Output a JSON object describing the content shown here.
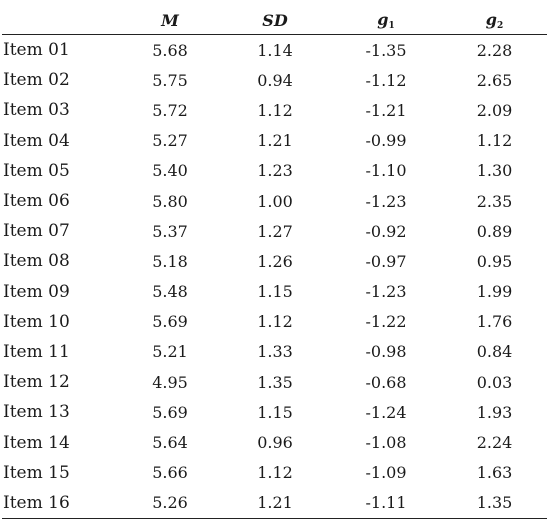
{
  "table": {
    "headers": [
      {
        "base": "",
        "sub": ""
      },
      {
        "base": "M",
        "sub": ""
      },
      {
        "base": "SD",
        "sub": ""
      },
      {
        "base": "g",
        "sub": "1"
      },
      {
        "base": "g",
        "sub": "2"
      }
    ],
    "rows": [
      {
        "label": "Item 01",
        "m": "5.68",
        "sd": "1.14",
        "g1": "-1.35",
        "g2": "2.28"
      },
      {
        "label": "Item 02",
        "m": "5.75",
        "sd": "0.94",
        "g1": "-1.12",
        "g2": "2.65"
      },
      {
        "label": "Item 03",
        "m": "5.72",
        "sd": "1.12",
        "g1": "-1.21",
        "g2": "2.09"
      },
      {
        "label": "Item 04",
        "m": "5.27",
        "sd": "1.21",
        "g1": "-0.99",
        "g2": "1.12"
      },
      {
        "label": "Item 05",
        "m": "5.40",
        "sd": "1.23",
        "g1": "-1.10",
        "g2": "1.30"
      },
      {
        "label": "Item 06",
        "m": "5.80",
        "sd": "1.00",
        "g1": "-1.23",
        "g2": "2.35"
      },
      {
        "label": "Item 07",
        "m": "5.37",
        "sd": "1.27",
        "g1": "-0.92",
        "g2": "0.89"
      },
      {
        "label": "Item 08",
        "m": "5.18",
        "sd": "1.26",
        "g1": "-0.97",
        "g2": "0.95"
      },
      {
        "label": "Item 09",
        "m": "5.48",
        "sd": "1.15",
        "g1": "-1.23",
        "g2": "1.99"
      },
      {
        "label": "Item 10",
        "m": "5.69",
        "sd": "1.12",
        "g1": "-1.22",
        "g2": "1.76"
      },
      {
        "label": "Item 11",
        "m": "5.21",
        "sd": "1.33",
        "g1": "-0.98",
        "g2": "0.84"
      },
      {
        "label": "Item 12",
        "m": "4.95",
        "sd": "1.35",
        "g1": "-0.68",
        "g2": "0.03"
      },
      {
        "label": "Item 13",
        "m": "5.69",
        "sd": "1.15",
        "g1": "-1.24",
        "g2": "1.93"
      },
      {
        "label": "Item 14",
        "m": "5.64",
        "sd": "0.96",
        "g1": "-1.08",
        "g2": "2.24"
      },
      {
        "label": "Item 15",
        "m": "5.66",
        "sd": "1.12",
        "g1": "-1.09",
        "g2": "1.63"
      },
      {
        "label": "Item 16",
        "m": "5.26",
        "sd": "1.21",
        "g1": "-1.11",
        "g2": "1.35"
      }
    ]
  }
}
